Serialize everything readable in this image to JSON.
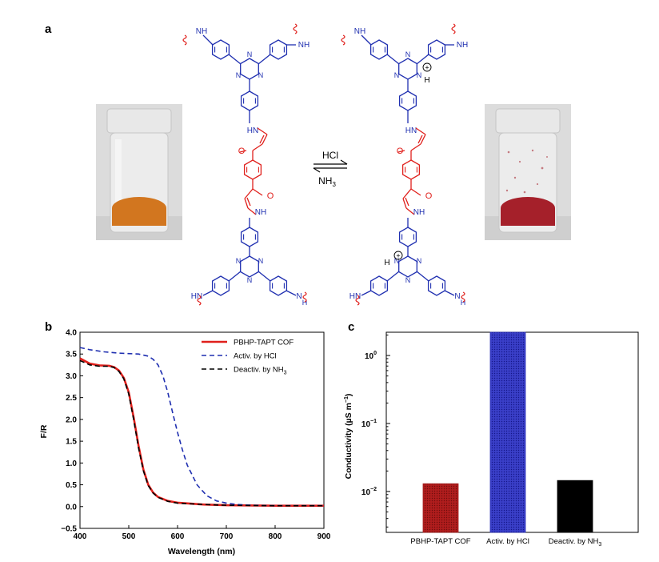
{
  "panels": {
    "a": "a",
    "b": "b",
    "c": "c"
  },
  "scheme": {
    "forward_reagent": "HCl",
    "reverse_reagent_main": "NH",
    "reverse_reagent_sub": "3",
    "amine_nh": "NH",
    "amine_hn": "HN",
    "amine_n": "N",
    "amine_h": "H",
    "ketone_o": "O",
    "triazine_n": "N",
    "proton_h": "H",
    "plus": "+",
    "colors": {
      "amine_core": "#1f2fb0",
      "keto_linker": "#e0201c",
      "wavy": "#e0201c"
    }
  },
  "photos": {
    "left": {
      "powder_color": "#d2761f"
    },
    "right": {
      "powder_color": "#a5202a"
    }
  },
  "chart_data": [
    {
      "type": "line",
      "panel": "b",
      "xlabel": "Wavelength (nm)",
      "ylabel": "F/R",
      "xlim": [
        400,
        900
      ],
      "ylim": [
        -0.5,
        4.0
      ],
      "xticks": [
        "400",
        "500",
        "600",
        "700",
        "800",
        "900"
      ],
      "yticks": [
        "−0.5",
        "0.0",
        "0.5",
        "1.0",
        "1.5",
        "2.0",
        "2.5",
        "3.0",
        "3.5",
        "4.0"
      ],
      "legend_position": "top-right",
      "series": [
        {
          "name": "PBHP-TAPT COF",
          "color": "#e0201c",
          "style": "solid",
          "x": [
            400,
            420,
            440,
            460,
            470,
            480,
            490,
            500,
            510,
            520,
            530,
            540,
            550,
            560,
            580,
            600,
            650,
            700,
            800,
            900
          ],
          "y": [
            3.4,
            3.28,
            3.24,
            3.23,
            3.2,
            3.12,
            2.95,
            2.62,
            2.05,
            1.4,
            0.85,
            0.5,
            0.32,
            0.22,
            0.13,
            0.09,
            0.05,
            0.03,
            0.02,
            0.02
          ]
        },
        {
          "name": "Activ. by HCl",
          "color": "#1f2fb0",
          "style": "dashed",
          "x": [
            400,
            420,
            450,
            480,
            500,
            520,
            540,
            550,
            560,
            570,
            580,
            590,
            600,
            610,
            620,
            640,
            660,
            680,
            700,
            720,
            750,
            800,
            900
          ],
          "y": [
            3.65,
            3.6,
            3.55,
            3.52,
            3.51,
            3.5,
            3.45,
            3.38,
            3.25,
            3.0,
            2.62,
            2.15,
            1.7,
            1.3,
            0.95,
            0.5,
            0.25,
            0.13,
            0.08,
            0.05,
            0.03,
            0.02,
            0.02
          ]
        },
        {
          "name": "Deactiv. by NH",
          "name_sub": "3",
          "color": "#000000",
          "style": "dashed",
          "x": [
            400,
            420,
            440,
            460,
            470,
            480,
            490,
            500,
            510,
            520,
            530,
            540,
            550,
            560,
            580,
            600,
            650,
            700,
            800,
            900
          ],
          "y": [
            3.35,
            3.25,
            3.22,
            3.22,
            3.19,
            3.1,
            2.93,
            2.58,
            2.0,
            1.35,
            0.82,
            0.48,
            0.31,
            0.21,
            0.12,
            0.08,
            0.05,
            0.03,
            0.02,
            0.02
          ]
        }
      ]
    },
    {
      "type": "bar",
      "panel": "c",
      "ylabel": "Conductivity (µS m",
      "ylabel_sup": "−1",
      "ylabel_close": ")",
      "yscale": "log",
      "ylim": [
        0.0025,
        2.2
      ],
      "yticks": [
        {
          "base": "10",
          "exp": "−2",
          "value": 0.01
        },
        {
          "base": "10",
          "exp": "−1",
          "value": 0.1
        },
        {
          "base": "10",
          "exp": "0",
          "value": 1
        }
      ],
      "categories": [
        {
          "label": "PBHP-TAPT COF",
          "sub": ""
        },
        {
          "label": "Activ. by HCl",
          "sub": ""
        },
        {
          "label": "Deactiv. by NH",
          "sub": "3"
        }
      ],
      "values": [
        0.013,
        2.2,
        0.0145
      ],
      "colors": [
        "#a11a1a",
        "#2a2fb8",
        "#000000"
      ]
    }
  ]
}
